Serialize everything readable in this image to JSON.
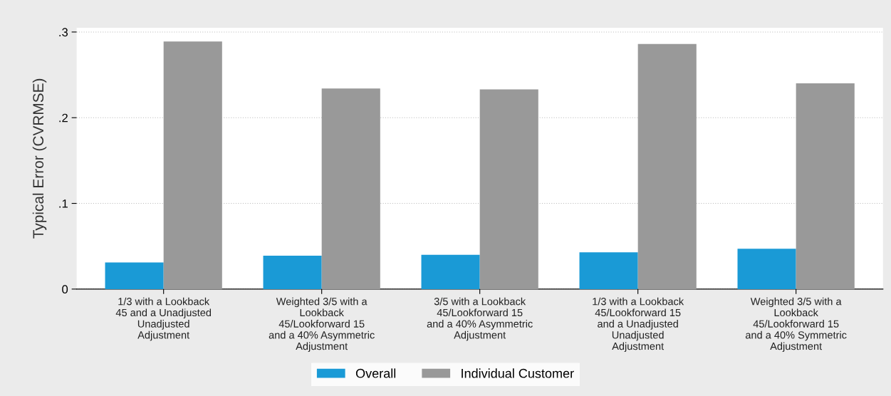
{
  "chart_data": {
    "type": "bar",
    "ylabel": "Typical Error (CVRMSE)",
    "categories": [
      "1/3 with a Lookback\n45 and a Unadjusted\nUnadjusted\nAdjustment",
      "Weighted 3/5 with a\nLookback\n45/Lookforward 15\nand a 40% Asymmetric\nAdjustment",
      "3/5 with a Lookback\n45/Lookforward 15\nand a 40% Asymmetric\nAdjustment",
      "1/3 with a Lookback\n45/Lookforward 15\nand a Unadjusted\nUnadjusted\nAdjustment",
      "Weighted 3/5 with a\nLookback\n45/Lookforward 15\nand a 40% Symmetric\nAdjustment"
    ],
    "series": [
      {
        "name": "Overall",
        "color": "#1a9ad6",
        "values": [
          0.031,
          0.039,
          0.04,
          0.043,
          0.047
        ]
      },
      {
        "name": "Individual Customer",
        "color": "#999999",
        "values": [
          0.289,
          0.234,
          0.233,
          0.286,
          0.24
        ]
      }
    ],
    "ylim": [
      0,
      0.305
    ],
    "yticks": [
      {
        "value": 0,
        "label": "0"
      },
      {
        "value": 0.1,
        "label": ".1"
      },
      {
        "value": 0.2,
        "label": ".2"
      },
      {
        "value": 0.3,
        "label": ".3"
      }
    ],
    "grid": "y",
    "legend": "bottom"
  }
}
